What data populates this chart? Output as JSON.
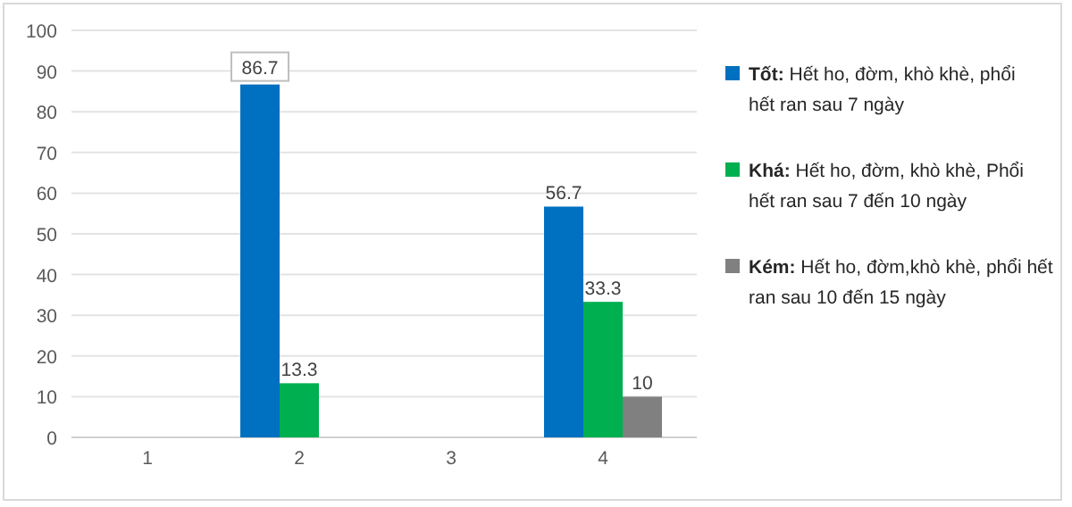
{
  "chart_data": {
    "type": "bar",
    "categories": [
      "1",
      "2",
      "3",
      "4"
    ],
    "series": [
      {
        "name": "Tốt: Hết ho, đờm, khò khè, phổi hết ran sau 7 ngày",
        "color": "#0070c0",
        "values": [
          null,
          86.7,
          null,
          56.7
        ]
      },
      {
        "name": "Khá: Hết ho, đờm, khò khè, Phổi hết ran sau 7 đến 10 ngày",
        "color": "#00b050",
        "values": [
          null,
          13.3,
          null,
          33.3
        ]
      },
      {
        "name": "Kém: Hết ho, đờm,khò khè, phổi hết ran sau 10 đến 15 ngày",
        "color": "#808080",
        "values": [
          null,
          null,
          null,
          10
        ]
      }
    ],
    "ylim": [
      0,
      100
    ],
    "yticks": [
      0,
      10,
      20,
      30,
      40,
      50,
      60,
      70,
      80,
      90,
      100
    ],
    "grid": "y",
    "legend": "right",
    "data_labels": true
  }
}
